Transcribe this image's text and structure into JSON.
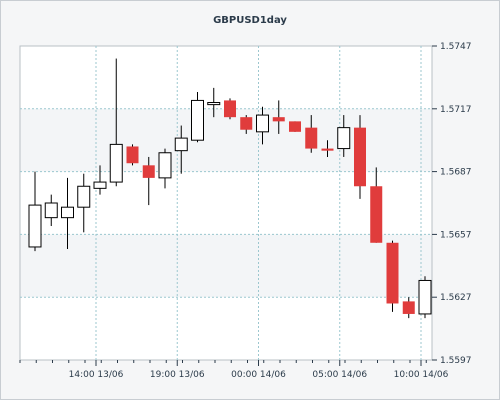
{
  "chart_data": {
    "type": "candlestick",
    "title": "GBPUSD1day",
    "y_ticks": [
      "1.5747",
      "1.5717",
      "1.5687",
      "1.5657",
      "1.5627",
      "1.5597"
    ],
    "x_ticks": [
      "14:00 13/06",
      "19:00 13/06",
      "00:00 14/06",
      "05:00 14/06",
      "10:00 14/06"
    ],
    "ylim": [
      1.5597,
      1.5747
    ],
    "grid": true,
    "colors": {
      "up": "#ffffff",
      "down": "#e03c3c",
      "outline": "#000000",
      "grid": "#9cc7cf"
    },
    "candles": [
      {
        "open": 1.5651,
        "high": 1.5687,
        "low": 1.5649,
        "close": 1.5671
      },
      {
        "open": 1.5665,
        "high": 1.5676,
        "low": 1.5661,
        "close": 1.5672
      },
      {
        "open": 1.5665,
        "high": 1.5684,
        "low": 1.565,
        "close": 1.567
      },
      {
        "open": 1.567,
        "high": 1.5686,
        "low": 1.5658,
        "close": 1.568
      },
      {
        "open": 1.5679,
        "high": 1.569,
        "low": 1.5676,
        "close": 1.5682
      },
      {
        "open": 1.5682,
        "high": 1.5741,
        "low": 1.568,
        "close": 1.57
      },
      {
        "open": 1.5699,
        "high": 1.57,
        "low": 1.569,
        "close": 1.5691
      },
      {
        "open": 1.569,
        "high": 1.5694,
        "low": 1.5671,
        "close": 1.5684
      },
      {
        "open": 1.5684,
        "high": 1.5698,
        "low": 1.5679,
        "close": 1.5696
      },
      {
        "open": 1.5697,
        "high": 1.5709,
        "low": 1.5686,
        "close": 1.5703
      },
      {
        "open": 1.5702,
        "high": 1.5725,
        "low": 1.5701,
        "close": 1.5721
      },
      {
        "open": 1.5719,
        "high": 1.5727,
        "low": 1.5713,
        "close": 1.572
      },
      {
        "open": 1.5721,
        "high": 1.5722,
        "low": 1.5712,
        "close": 1.5713
      },
      {
        "open": 1.5713,
        "high": 1.5714,
        "low": 1.5705,
        "close": 1.5707
      },
      {
        "open": 1.5706,
        "high": 1.5718,
        "low": 1.57,
        "close": 1.5714
      },
      {
        "open": 1.5713,
        "high": 1.5721,
        "low": 1.5705,
        "close": 1.5711
      },
      {
        "open": 1.5711,
        "high": 1.5711,
        "low": 1.5706,
        "close": 1.5706
      },
      {
        "open": 1.5708,
        "high": 1.5714,
        "low": 1.5696,
        "close": 1.5698
      },
      {
        "open": 1.5698,
        "high": 1.5702,
        "low": 1.5694,
        "close": 1.5697
      },
      {
        "open": 1.5698,
        "high": 1.5714,
        "low": 1.5694,
        "close": 1.5708
      },
      {
        "open": 1.5708,
        "high": 1.5714,
        "low": 1.5674,
        "close": 1.568
      },
      {
        "open": 1.568,
        "high": 1.5689,
        "low": 1.5653,
        "close": 1.5653
      },
      {
        "open": 1.5653,
        "high": 1.5654,
        "low": 1.562,
        "close": 1.5624
      },
      {
        "open": 1.5625,
        "high": 1.5627,
        "low": 1.5617,
        "close": 1.5619
      },
      {
        "open": 1.5619,
        "high": 1.5637,
        "low": 1.5617,
        "close": 1.5635
      }
    ]
  }
}
